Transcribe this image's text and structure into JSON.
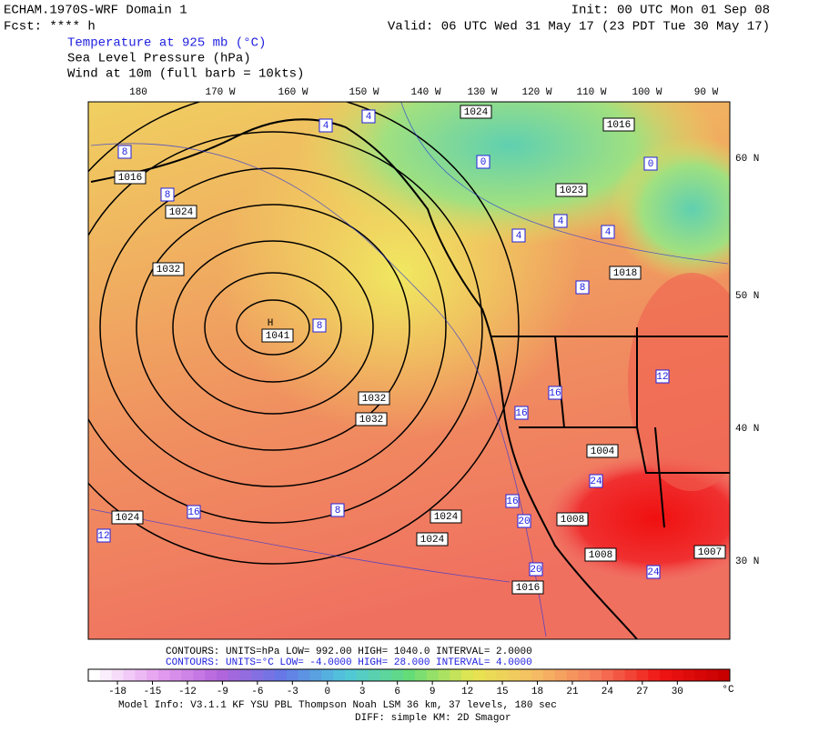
{
  "header": {
    "left": [
      "ECHAM.1970S-WRF Domain 1",
      "Fcst: **** h"
    ],
    "right": [
      "Init: 00 UTC Mon 01 Sep 08",
      "Valid: 06 UTC Wed 31 May 17 (23 PDT Tue 30 May 17)"
    ],
    "fields": [
      "Temperature at 925 mb (°C)",
      "Sea Level Pressure (hPa)",
      "Wind at 10m (full barb = 10kts)"
    ]
  },
  "map": {
    "lon_labels": [
      "180",
      "170 W",
      "160 W",
      "150 W",
      "140 W",
      "130 W",
      "120 W",
      "110 W",
      "100 W",
      "90 W"
    ],
    "lat_labels": [
      "60 N",
      "50 N",
      "40 N",
      "30 N"
    ],
    "high_label": "H",
    "pressure_labels": [
      "1016",
      "1024",
      "1032",
      "1041",
      "1032",
      "1032",
      "1024",
      "1024",
      "1024",
      "1024",
      "1016",
      "1023",
      "1018",
      "1004",
      "1008",
      "1008",
      "1007",
      "1016"
    ],
    "temp_labels": [
      "4",
      "4",
      "8",
      "8",
      "0",
      "4",
      "4",
      "4",
      "8",
      "8",
      "12",
      "16",
      "16",
      "16",
      "20",
      "20",
      "24",
      "24",
      "12",
      "16",
      "8",
      "0"
    ]
  },
  "info": {
    "contours_slp": "CONTOURS:  UNITS=hPa  LOW=  992.00      HIGH=  1040.0      INTERVAL=   2.0000",
    "contours_temp": "CONTOURS:  UNITS=°C  LOW= -4.0000      HIGH=  28.000      INTERVAL=   4.0000"
  },
  "colorbar": {
    "ticks": [
      -18,
      -15,
      -12,
      -9,
      -6,
      -3,
      0,
      3,
      6,
      9,
      12,
      15,
      18,
      21,
      24,
      27,
      30
    ],
    "unit": "°C",
    "range": [
      -20.5,
      34.5
    ]
  },
  "footer": [
    "Model Info: V3.1.1    KF      YSU PBL   Thompson     Noah LSM   36 km,    37 levels,   180 sec",
    "DIFF: simple KM: 2D Smagor"
  ]
}
